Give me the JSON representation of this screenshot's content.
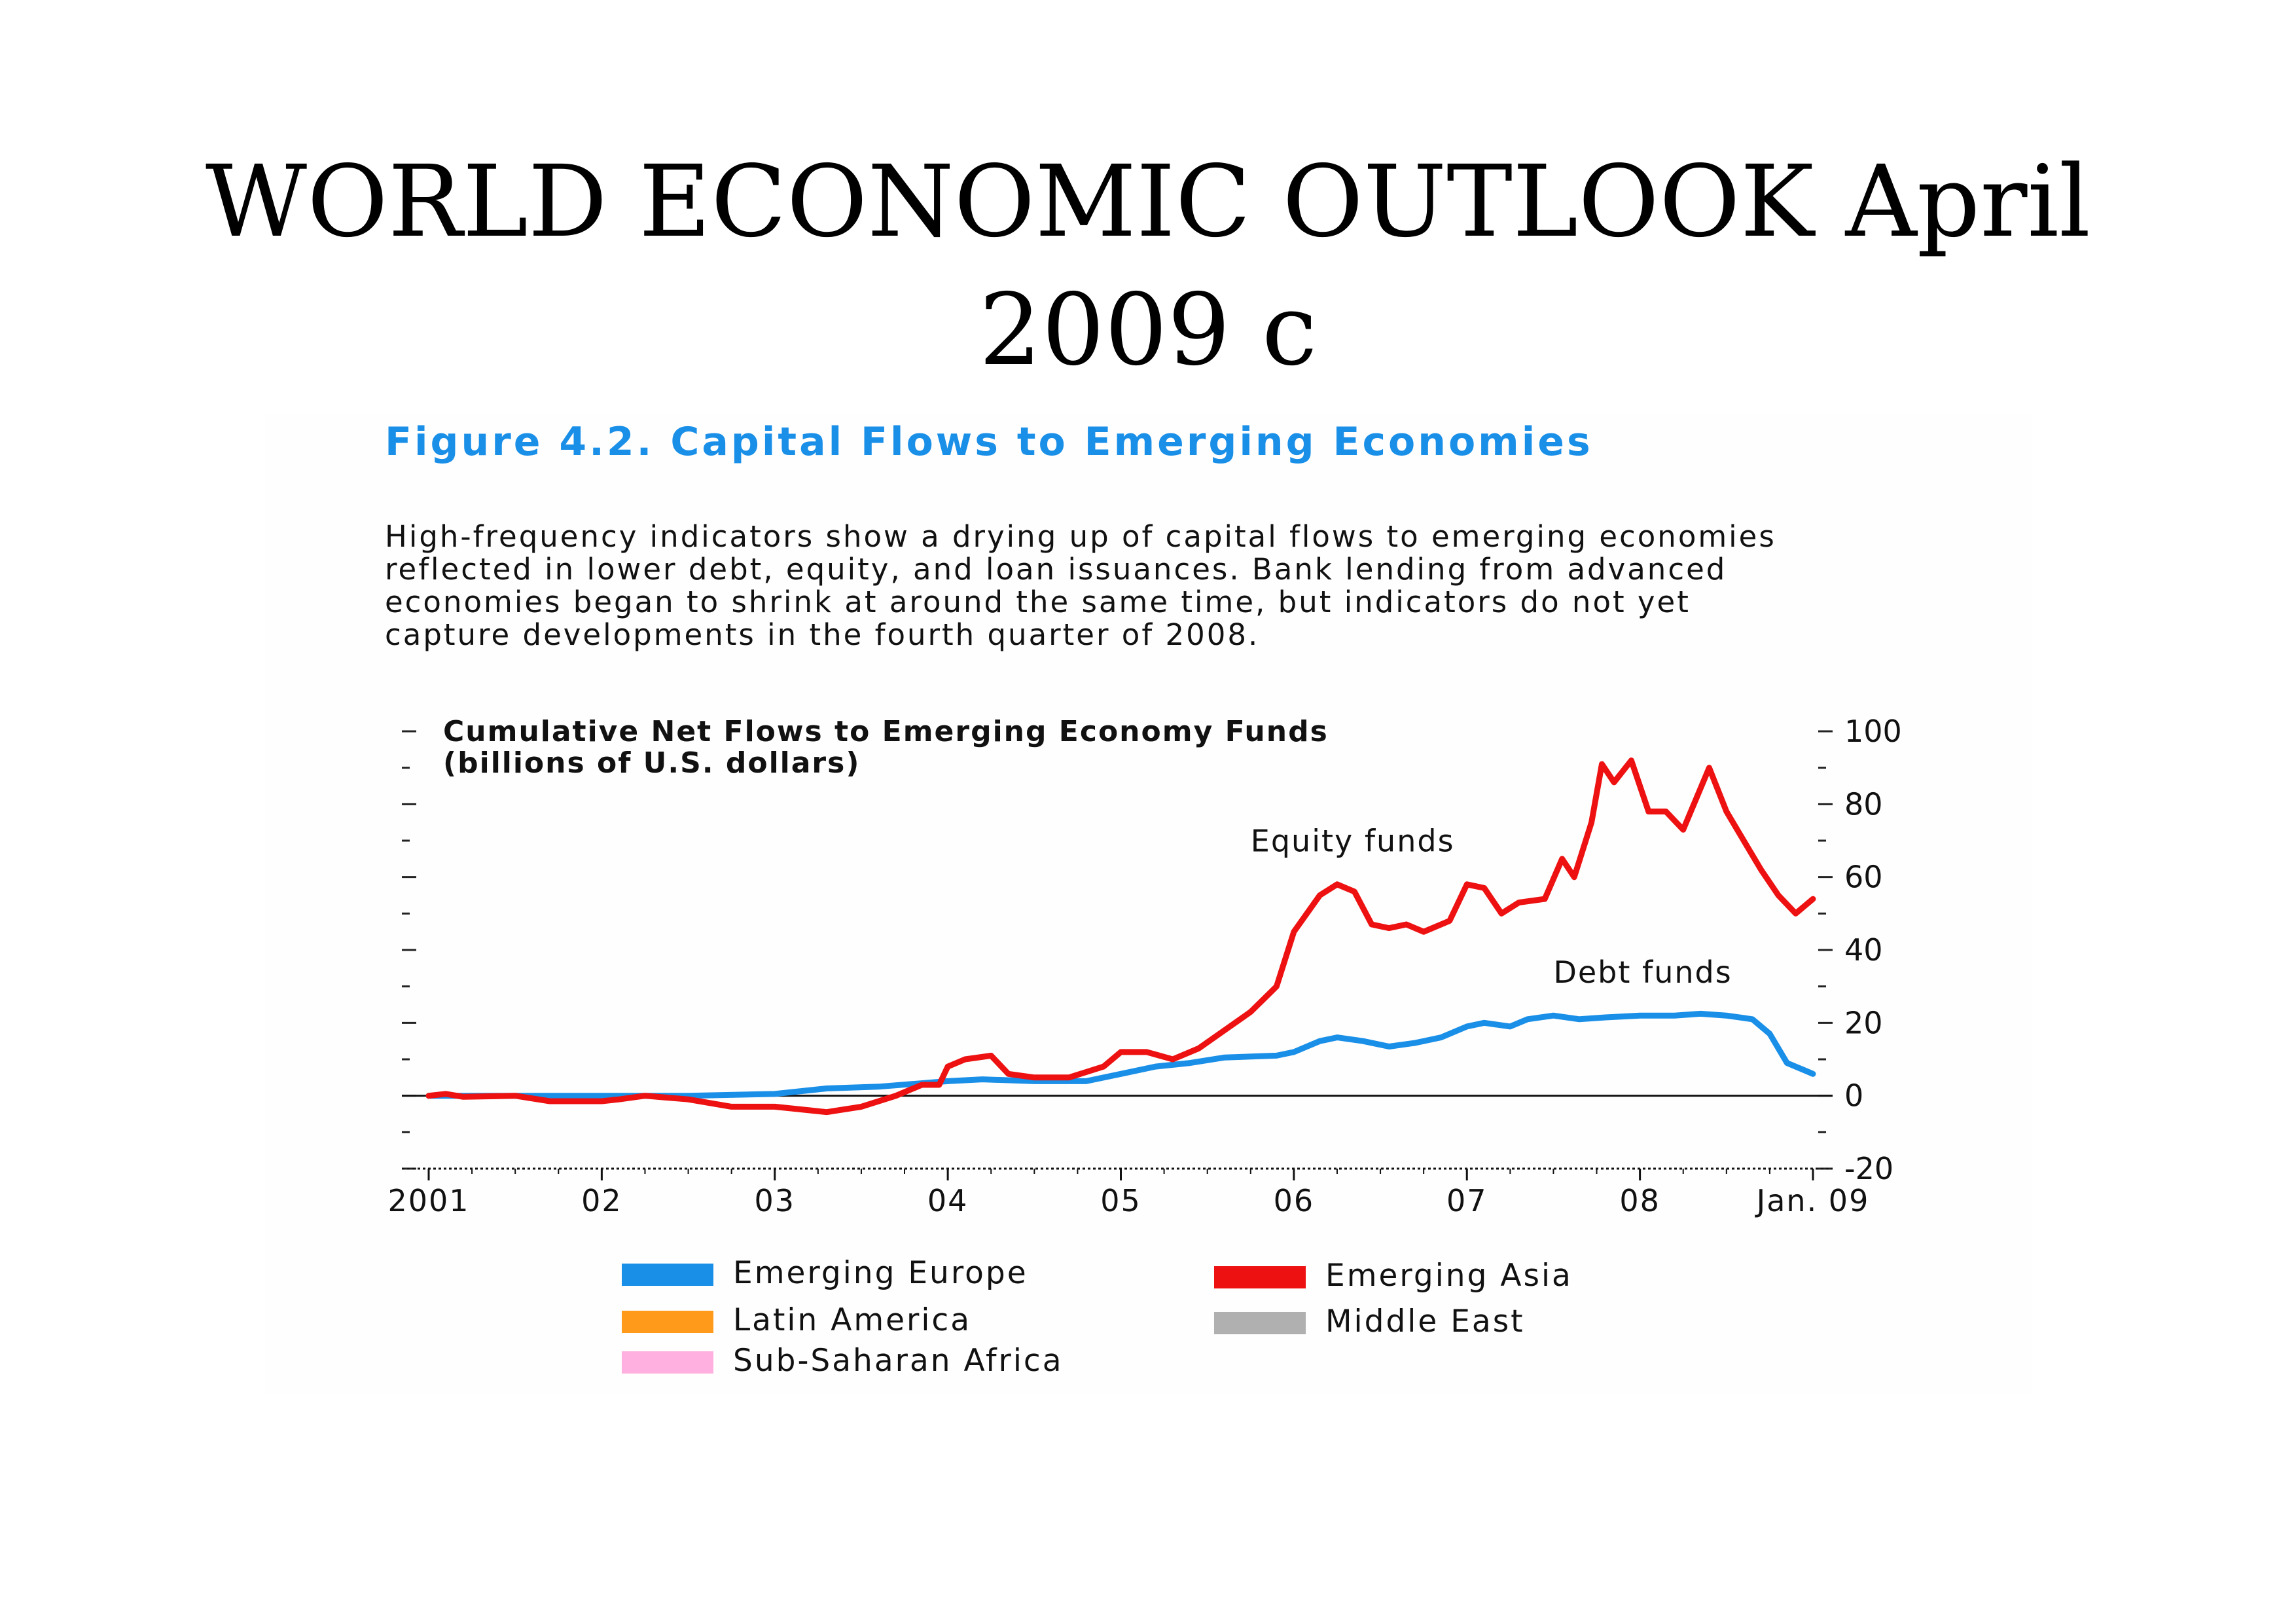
{
  "slide": {
    "title_line1": "WORLD ECONOMIC OUTLOOK April",
    "title_line2": "2009 c"
  },
  "figure": {
    "title": "Figure 4.2.  Capital Flows to Emerging Economies",
    "caption_lines": [
      "High-frequency indicators show a drying up of capital flows to emerging economies",
      "reflected in lower debt, equity, and loan issuances. Bank lending from advanced",
      "economies began to shrink at around the same time, but indicators do not yet",
      "capture developments in the fourth quarter of 2008."
    ],
    "legend": [
      {
        "label": "Emerging Europe",
        "color": "#1a8fe8"
      },
      {
        "label": "Latin America",
        "color": "#ff9a1a"
      },
      {
        "label": "Sub-Saharan Africa",
        "color": "#ffb0e0"
      },
      {
        "label": "Emerging Asia",
        "color": "#ee1111"
      },
      {
        "label": "Middle East",
        "color": "#b0b0b0"
      }
    ]
  },
  "chart_data": {
    "type": "line",
    "title": "Cumulative Net Flows to Emerging Economy Funds",
    "subtitle": "(billions of U.S. dollars)",
    "x_tick_labels": [
      "2001",
      "02",
      "03",
      "04",
      "05",
      "06",
      "07",
      "08",
      "Jan. 09"
    ],
    "x_tick_positions": [
      2001,
      2002,
      2003,
      2004,
      2005,
      2006,
      2007,
      2008,
      2009
    ],
    "xlim": [
      2001,
      2009
    ],
    "ylim": [
      -20,
      100
    ],
    "y_tick_labels": [
      "-20",
      "0",
      "20",
      "40",
      "60",
      "80",
      "100"
    ],
    "y_axis_side": "right",
    "grid": false,
    "series": [
      {
        "name": "Equity funds",
        "color": "#ee1111",
        "points": [
          [
            2001.0,
            0
          ],
          [
            2001.1,
            0.5
          ],
          [
            2001.2,
            -0.3
          ],
          [
            2001.5,
            0
          ],
          [
            2001.7,
            -1.5
          ],
          [
            2002.0,
            -1.5
          ],
          [
            2002.1,
            -1
          ],
          [
            2002.25,
            0
          ],
          [
            2002.5,
            -1
          ],
          [
            2002.75,
            -3
          ],
          [
            2003.0,
            -3
          ],
          [
            2003.2,
            -4
          ],
          [
            2003.3,
            -4.5
          ],
          [
            2003.5,
            -3
          ],
          [
            2003.7,
            0
          ],
          [
            2003.85,
            3
          ],
          [
            2003.95,
            3
          ],
          [
            2004.0,
            8
          ],
          [
            2004.1,
            10
          ],
          [
            2004.25,
            11
          ],
          [
            2004.35,
            6
          ],
          [
            2004.5,
            5
          ],
          [
            2004.7,
            5
          ],
          [
            2004.9,
            8
          ],
          [
            2005.0,
            12
          ],
          [
            2005.15,
            12
          ],
          [
            2005.3,
            10
          ],
          [
            2005.45,
            13
          ],
          [
            2005.6,
            18
          ],
          [
            2005.75,
            23
          ],
          [
            2005.9,
            30
          ],
          [
            2006.0,
            45
          ],
          [
            2006.15,
            55
          ],
          [
            2006.25,
            58
          ],
          [
            2006.35,
            56
          ],
          [
            2006.45,
            47
          ],
          [
            2006.55,
            46
          ],
          [
            2006.65,
            47
          ],
          [
            2006.75,
            45
          ],
          [
            2006.9,
            48
          ],
          [
            2007.0,
            58
          ],
          [
            2007.1,
            57
          ],
          [
            2007.2,
            50
          ],
          [
            2007.3,
            53
          ],
          [
            2007.45,
            54
          ],
          [
            2007.55,
            65
          ],
          [
            2007.62,
            60
          ],
          [
            2007.72,
            75
          ],
          [
            2007.78,
            91
          ],
          [
            2007.85,
            86
          ],
          [
            2007.95,
            92
          ],
          [
            2008.05,
            78
          ],
          [
            2008.15,
            78
          ],
          [
            2008.25,
            73
          ],
          [
            2008.4,
            90
          ],
          [
            2008.5,
            78
          ],
          [
            2008.6,
            70
          ],
          [
            2008.7,
            62
          ],
          [
            2008.8,
            55
          ],
          [
            2008.9,
            50
          ],
          [
            2009.0,
            54
          ]
        ]
      },
      {
        "name": "Debt funds",
        "color": "#1a8fe8",
        "points": [
          [
            2001.0,
            0
          ],
          [
            2001.5,
            0
          ],
          [
            2002.0,
            0
          ],
          [
            2002.5,
            0
          ],
          [
            2003.0,
            0.5
          ],
          [
            2003.3,
            2
          ],
          [
            2003.6,
            2.5
          ],
          [
            2004.0,
            4
          ],
          [
            2004.2,
            4.5
          ],
          [
            2004.5,
            4
          ],
          [
            2004.8,
            4
          ],
          [
            2005.0,
            6
          ],
          [
            2005.2,
            8
          ],
          [
            2005.4,
            9
          ],
          [
            2005.6,
            10.5
          ],
          [
            2005.9,
            11
          ],
          [
            2006.0,
            12
          ],
          [
            2006.15,
            15
          ],
          [
            2006.25,
            16
          ],
          [
            2006.4,
            15
          ],
          [
            2006.55,
            13.5
          ],
          [
            2006.7,
            14.5
          ],
          [
            2006.85,
            16
          ],
          [
            2007.0,
            19
          ],
          [
            2007.1,
            20
          ],
          [
            2007.25,
            19
          ],
          [
            2007.35,
            21
          ],
          [
            2007.5,
            22
          ],
          [
            2007.65,
            21
          ],
          [
            2007.8,
            21.5
          ],
          [
            2008.0,
            22
          ],
          [
            2008.2,
            22
          ],
          [
            2008.35,
            22.5
          ],
          [
            2008.5,
            22
          ],
          [
            2008.65,
            21
          ],
          [
            2008.75,
            17
          ],
          [
            2008.85,
            9
          ],
          [
            2008.95,
            7
          ],
          [
            2009.0,
            6
          ]
        ]
      }
    ],
    "annotations": [
      {
        "text": "Equity funds",
        "x": 2005.75,
        "y": 67
      },
      {
        "text": "Debt funds",
        "x": 2007.5,
        "y": 31
      }
    ]
  }
}
